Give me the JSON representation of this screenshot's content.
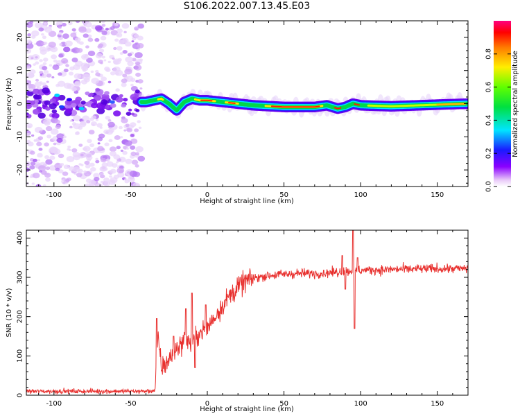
{
  "title": "S106.2022.007.13.45.E03",
  "colors": {
    "snr_line": "#e8302e",
    "axes": "#000000",
    "background": "#ffffff"
  },
  "chart_data": [
    {
      "type": "heatmap",
      "xlabel": "Height of straight line (km)",
      "ylabel": "Frequency (Hz)",
      "xlim": [
        -118,
        170
      ],
      "ylim": [
        -25,
        25
      ],
      "xticks": [
        -100,
        -50,
        0,
        50,
        100,
        150
      ],
      "yticks": [
        -20,
        -10,
        0,
        10,
        20
      ],
      "colorbar": {
        "label": "Normalized spectral amplitude",
        "range": [
          0,
          1
        ],
        "ticks": [
          0.0,
          0.2,
          0.4,
          0.6,
          0.8
        ],
        "colormap": "rainbow (white-violet-blue-cyan-green-yellow-red-magenta)"
      },
      "ridge_center_hz": [
        [
          -40,
          0.5
        ],
        [
          -30,
          1.5
        ],
        [
          -25,
          0.0
        ],
        [
          -20,
          -2.0
        ],
        [
          -15,
          0.5
        ],
        [
          -10,
          1.5
        ],
        [
          -5,
          1.0
        ],
        [
          0,
          1.0
        ],
        [
          10,
          0.5
        ],
        [
          20,
          0.0
        ],
        [
          30,
          -0.5
        ],
        [
          50,
          -1.0
        ],
        [
          70,
          -1.0
        ],
        [
          78,
          -0.5
        ],
        [
          85,
          -1.5
        ],
        [
          90,
          -1.0
        ],
        [
          95,
          0.0
        ],
        [
          100,
          -0.5
        ],
        [
          120,
          -0.8
        ],
        [
          150,
          -0.3
        ],
        [
          170,
          0.0
        ]
      ],
      "noise_region_km": [
        -118,
        -43
      ]
    },
    {
      "type": "line",
      "xlabel": "Height of straight line (km)",
      "ylabel": "SNR (10 * v/v)",
      "xlim": [
        -118,
        170
      ],
      "ylim": [
        0,
        420
      ],
      "xticks": [
        -100,
        -50,
        0,
        50,
        100,
        150
      ],
      "yticks": [
        0,
        100,
        200,
        300,
        400
      ],
      "series": [
        {
          "color": "#e8302e",
          "trend": [
            [
              -118,
              10
            ],
            [
              -40,
              10
            ],
            [
              -34,
              12
            ],
            [
              -33,
              80
            ],
            [
              -32,
              150
            ],
            [
              -30,
              70
            ],
            [
              -25,
              90
            ],
            [
              -20,
              120
            ],
            [
              -15,
              140
            ],
            [
              -10,
              130
            ],
            [
              -5,
              160
            ],
            [
              0,
              170
            ],
            [
              5,
              200
            ],
            [
              10,
              230
            ],
            [
              15,
              255
            ],
            [
              20,
              275
            ],
            [
              25,
              290
            ],
            [
              30,
              298
            ],
            [
              40,
              305
            ],
            [
              50,
              308
            ],
            [
              60,
              310
            ],
            [
              70,
              310
            ],
            [
              80,
              312
            ],
            [
              90,
              315
            ],
            [
              100,
              318
            ],
            [
              120,
              320
            ],
            [
              150,
              322
            ],
            [
              170,
              322
            ]
          ],
          "spikes": [
            [
              -33,
              195
            ],
            [
              -22,
              150
            ],
            [
              -14,
              220
            ],
            [
              -10,
              260
            ],
            [
              -8,
              70
            ],
            [
              -1,
              230
            ],
            [
              88,
              355
            ],
            [
              90,
              270
            ],
            [
              95,
              420
            ],
            [
              96,
              170
            ],
            [
              98,
              350
            ]
          ]
        }
      ]
    }
  ]
}
